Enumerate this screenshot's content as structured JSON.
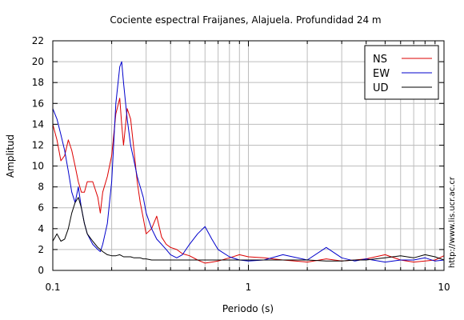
{
  "chart_data": {
    "type": "line",
    "title": "Cociente espectral Fraijanes, Alajuela. Profundidad 24 m",
    "xlabel": "Periodo (s)",
    "ylabel": "Amplitud",
    "xscale": "log",
    "xlim": [
      0.1,
      10
    ],
    "ylim": [
      0,
      22
    ],
    "x_tick_labels": [
      {
        "value": 0.1,
        "label": "0.1"
      },
      {
        "value": 1,
        "label": "1"
      },
      {
        "value": 10,
        "label": "10"
      }
    ],
    "y_ticks": [
      0,
      2,
      4,
      6,
      8,
      10,
      12,
      14,
      16,
      18,
      20,
      22
    ],
    "grid": true,
    "legend_position": "top-right",
    "side_text": "http://www.lis.ucr.ac.cr",
    "series": [
      {
        "name": "NS",
        "color": "#dd0000",
        "x": [
          0.1,
          0.105,
          0.11,
          0.115,
          0.12,
          0.125,
          0.13,
          0.135,
          0.14,
          0.145,
          0.15,
          0.16,
          0.17,
          0.175,
          0.18,
          0.19,
          0.2,
          0.21,
          0.22,
          0.225,
          0.23,
          0.24,
          0.25,
          0.26,
          0.27,
          0.28,
          0.29,
          0.3,
          0.32,
          0.34,
          0.36,
          0.38,
          0.4,
          0.43,
          0.46,
          0.5,
          0.55,
          0.6,
          0.65,
          0.7,
          0.8,
          0.9,
          1.0,
          1.2,
          1.5,
          2.0,
          2.5,
          3.0,
          3.5,
          4.0,
          5.0,
          6.0,
          7.0,
          8.0,
          9.0,
          10.0
        ],
        "values": [
          14.0,
          12.5,
          10.5,
          11.0,
          12.5,
          11.5,
          10.0,
          8.5,
          7.5,
          7.5,
          8.5,
          8.5,
          7.0,
          5.5,
          7.5,
          9.0,
          11.0,
          15.0,
          16.5,
          14.0,
          12.0,
          15.5,
          14.5,
          11.5,
          8.5,
          6.5,
          5.0,
          3.5,
          4.0,
          5.2,
          3.2,
          2.5,
          2.2,
          2.0,
          1.6,
          1.4,
          1.0,
          0.7,
          0.8,
          0.9,
          1.2,
          1.5,
          1.3,
          1.2,
          1.0,
          0.8,
          1.1,
          0.9,
          1.0,
          1.1,
          1.5,
          1.0,
          0.8,
          0.9,
          1.0,
          1.4
        ]
      },
      {
        "name": "EW",
        "color": "#0000cc",
        "x": [
          0.1,
          0.105,
          0.11,
          0.115,
          0.12,
          0.125,
          0.13,
          0.135,
          0.14,
          0.145,
          0.15,
          0.16,
          0.17,
          0.175,
          0.18,
          0.19,
          0.2,
          0.21,
          0.22,
          0.225,
          0.23,
          0.24,
          0.25,
          0.26,
          0.27,
          0.28,
          0.29,
          0.3,
          0.32,
          0.34,
          0.36,
          0.38,
          0.4,
          0.43,
          0.46,
          0.5,
          0.55,
          0.6,
          0.65,
          0.7,
          0.8,
          0.9,
          1.0,
          1.2,
          1.5,
          2.0,
          2.5,
          3.0,
          3.5,
          4.0,
          5.0,
          6.0,
          7.0,
          8.0,
          9.0,
          10.0
        ],
        "values": [
          15.5,
          14.5,
          13.0,
          11.5,
          9.5,
          7.5,
          6.5,
          8.0,
          6.0,
          4.5,
          3.5,
          2.5,
          2.0,
          1.8,
          2.5,
          4.5,
          8.5,
          16.0,
          19.5,
          20.0,
          18.0,
          14.5,
          12.0,
          10.5,
          9.0,
          8.0,
          7.0,
          5.5,
          4.0,
          3.0,
          2.5,
          2.0,
          1.5,
          1.2,
          1.5,
          2.5,
          3.5,
          4.2,
          3.0,
          2.0,
          1.3,
          1.0,
          0.9,
          1.0,
          1.5,
          1.0,
          2.2,
          1.2,
          0.9,
          1.1,
          0.8,
          1.0,
          1.0,
          1.2,
          0.9,
          1.0
        ]
      },
      {
        "name": "UD",
        "color": "#000000",
        "x": [
          0.1,
          0.105,
          0.11,
          0.115,
          0.12,
          0.125,
          0.13,
          0.135,
          0.14,
          0.145,
          0.15,
          0.16,
          0.17,
          0.175,
          0.18,
          0.19,
          0.2,
          0.21,
          0.22,
          0.225,
          0.23,
          0.24,
          0.25,
          0.26,
          0.27,
          0.28,
          0.29,
          0.3,
          0.32,
          0.34,
          0.36,
          0.38,
          0.4,
          0.43,
          0.46,
          0.5,
          0.55,
          0.6,
          0.65,
          0.7,
          0.8,
          0.9,
          1.0,
          1.2,
          1.5,
          2.0,
          2.5,
          3.0,
          3.5,
          4.0,
          5.0,
          6.0,
          7.0,
          8.0,
          9.0,
          10.0
        ],
        "values": [
          2.8,
          3.5,
          2.8,
          3.0,
          4.0,
          5.5,
          6.5,
          7.0,
          6.0,
          4.5,
          3.5,
          2.8,
          2.2,
          2.0,
          1.8,
          1.5,
          1.4,
          1.4,
          1.5,
          1.4,
          1.3,
          1.3,
          1.3,
          1.2,
          1.2,
          1.2,
          1.1,
          1.1,
          1.0,
          1.0,
          1.0,
          1.0,
          1.0,
          1.0,
          1.0,
          1.0,
          1.0,
          1.0,
          1.0,
          1.0,
          1.0,
          1.0,
          1.0,
          1.0,
          1.0,
          1.0,
          0.9,
          0.9,
          1.0,
          1.0,
          1.2,
          1.4,
          1.2,
          1.5,
          1.3,
          1.0
        ]
      }
    ]
  }
}
